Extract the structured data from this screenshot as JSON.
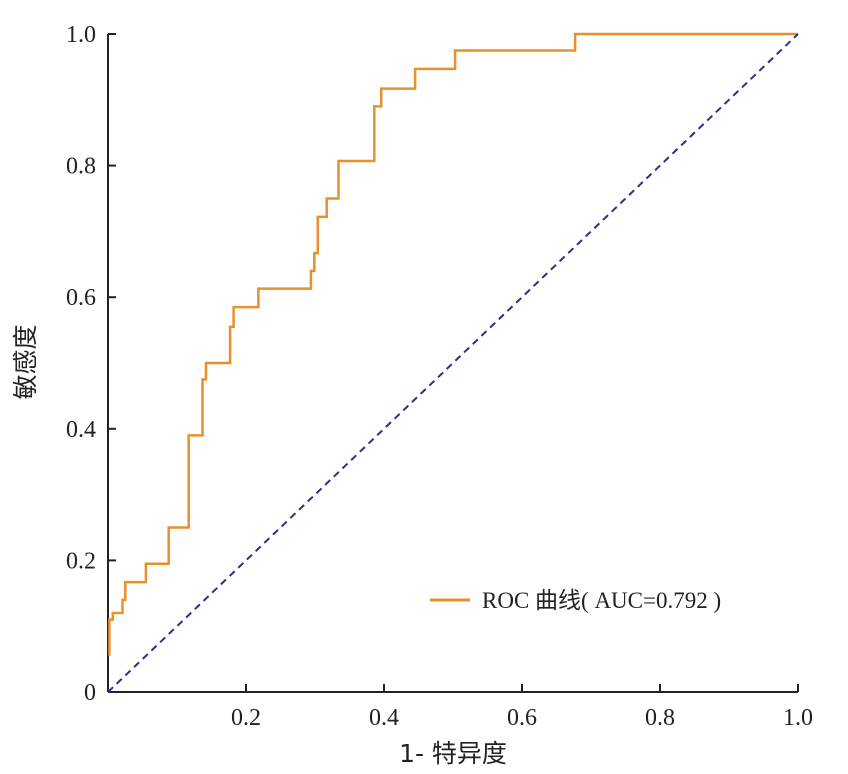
{
  "chart_data": {
    "type": "line",
    "title": "",
    "xlabel": "1- 特异度",
    "ylabel": "敏感度",
    "xlim": [
      0,
      1
    ],
    "ylim": [
      0,
      1
    ],
    "x_ticks": [
      "0",
      "0.2",
      "0.4",
      "0.6",
      "0.8",
      "1.0"
    ],
    "y_ticks": [
      "0",
      "0.2",
      "0.4",
      "0.6",
      "0.8",
      "1.0"
    ],
    "grid": false,
    "legend_position": "bottom-right",
    "series": [
      {
        "name": "ROC 曲线( AUC=0.792 )",
        "color": "#e8902e",
        "style": "solid",
        "x": [
          0.002,
          0.002,
          0.007,
          0.007,
          0.021,
          0.021,
          0.025,
          0.025,
          0.055,
          0.055,
          0.088,
          0.088,
          0.117,
          0.117,
          0.137,
          0.137,
          0.142,
          0.142,
          0.177,
          0.177,
          0.182,
          0.182,
          0.218,
          0.218,
          0.294,
          0.294,
          0.299,
          0.299,
          0.304,
          0.304,
          0.317,
          0.317,
          0.334,
          0.334,
          0.386,
          0.386,
          0.396,
          0.396,
          0.445,
          0.445,
          0.503,
          0.503,
          0.677,
          0.677,
          1.0
        ],
        "y": [
          0.055,
          0.11,
          0.11,
          0.12,
          0.12,
          0.14,
          0.14,
          0.167,
          0.167,
          0.195,
          0.195,
          0.25,
          0.25,
          0.39,
          0.39,
          0.475,
          0.475,
          0.5,
          0.5,
          0.555,
          0.555,
          0.585,
          0.585,
          0.613,
          0.613,
          0.64,
          0.64,
          0.667,
          0.667,
          0.722,
          0.722,
          0.75,
          0.75,
          0.807,
          0.807,
          0.89,
          0.89,
          0.917,
          0.917,
          0.947,
          0.947,
          0.975,
          0.975,
          1.0,
          1.0
        ]
      },
      {
        "name": "",
        "color": "#2e2f86",
        "style": "dashed",
        "x": [
          0,
          1
        ],
        "y": [
          0,
          1
        ]
      }
    ]
  }
}
